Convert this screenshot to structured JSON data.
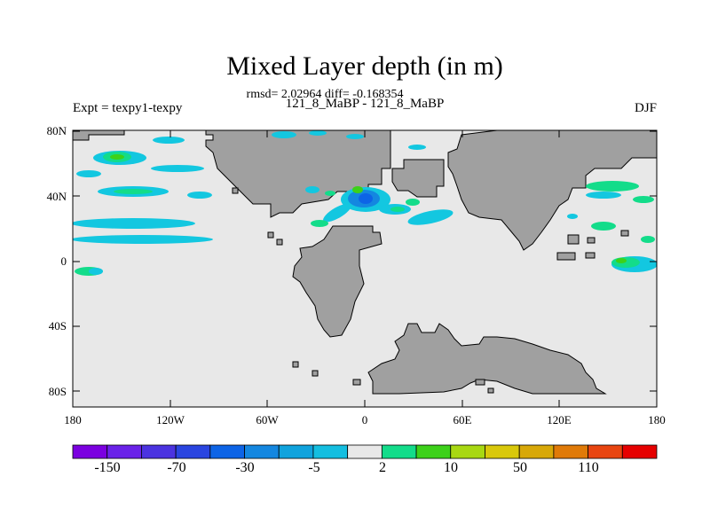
{
  "header": {
    "title": "Mixed Layer depth (in m)",
    "stats": "rmsd= 2.02964 diff= -0.168354",
    "case": "121_8_MaBP - 121_8_MaBP",
    "experiment": "Expt = texpy1-texpy",
    "season": "DJF"
  },
  "axes": {
    "x_ticks": [
      "180",
      "120W",
      "60W",
      "0",
      "60E",
      "120E",
      "180"
    ],
    "y_ticks": [
      "80N",
      "40N",
      "0",
      "40S",
      "80S"
    ]
  },
  "colorbar": {
    "labels": [
      "-150",
      "-70",
      "-30",
      "-5",
      "2",
      "10",
      "50",
      "110"
    ],
    "colors": [
      "#7b00e0",
      "#6a22e8",
      "#4b33e0",
      "#2a45e0",
      "#0d64e6",
      "#1487e0",
      "#10a3dd",
      "#14bee0",
      "#e8e8e8",
      "#13dc8a",
      "#3dd11a",
      "#a8d812",
      "#d9c80b",
      "#d8a808",
      "#e07a08",
      "#e84510",
      "#e60000"
    ]
  },
  "colors": {
    "land": "#a0a0a0",
    "ocean": "#e8e8e8"
  }
}
